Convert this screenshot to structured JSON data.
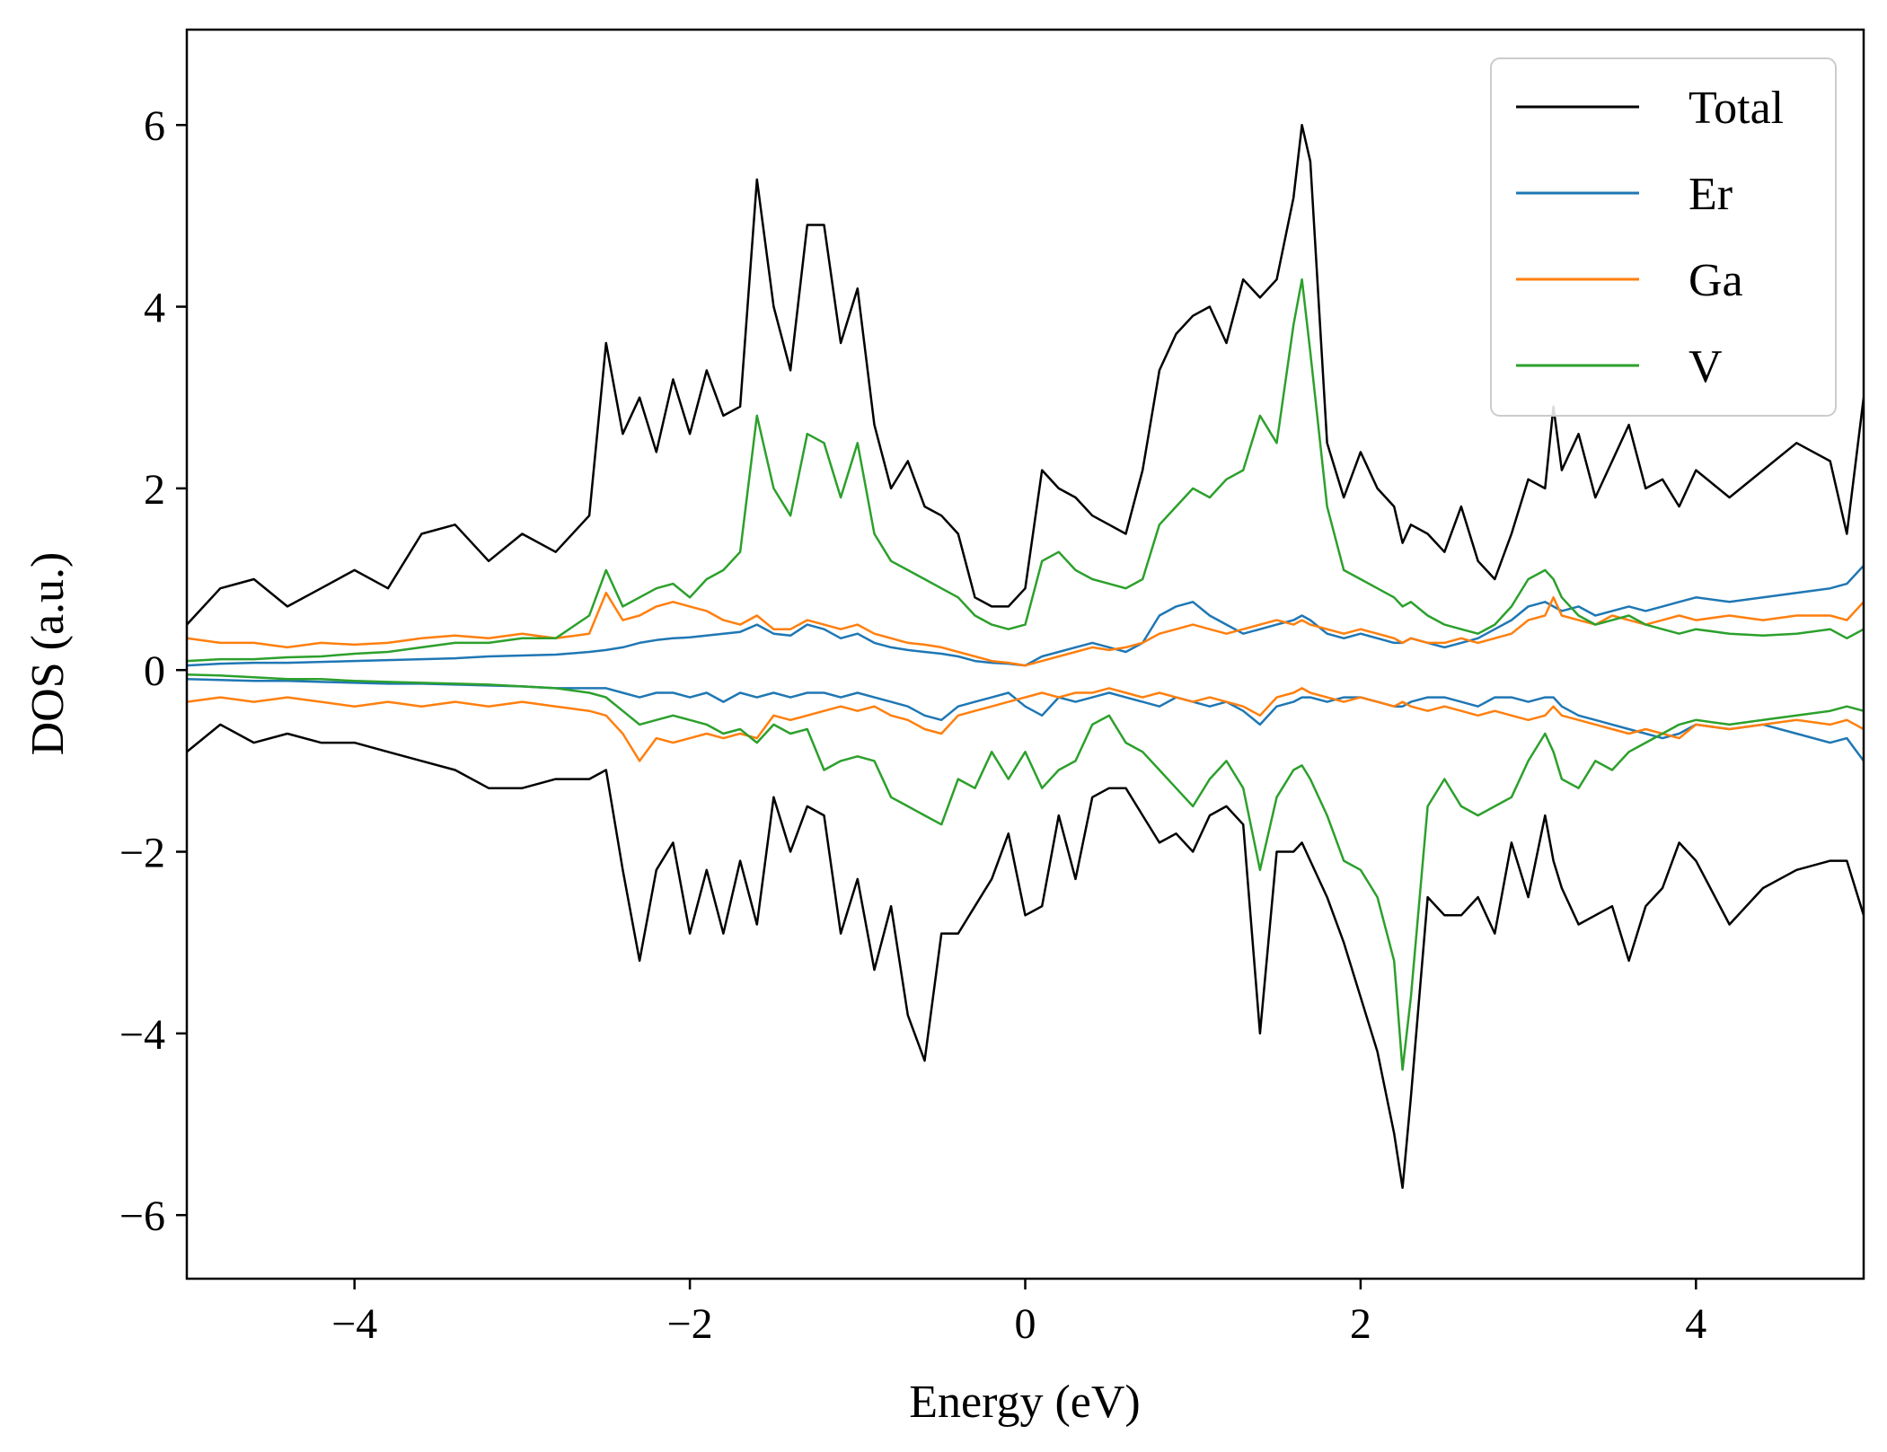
{
  "chart_data": {
    "type": "line",
    "title": "",
    "xlabel": "Energy (eV)",
    "ylabel": "DOS (a.u.)",
    "xlim": [
      -5,
      5
    ],
    "ylim": [
      -6.7,
      7.05
    ],
    "grid": false,
    "legend": "top-right",
    "xticks": [
      -4,
      -2,
      0,
      2,
      4
    ],
    "yticks": [
      -6,
      -4,
      -2,
      0,
      2,
      4,
      6
    ],
    "x": [
      -5.0,
      -4.8,
      -4.6,
      -4.4,
      -4.2,
      -4.0,
      -3.8,
      -3.6,
      -3.4,
      -3.2,
      -3.0,
      -2.8,
      -2.6,
      -2.5,
      -2.4,
      -2.3,
      -2.2,
      -2.1,
      -2.0,
      -1.9,
      -1.8,
      -1.7,
      -1.6,
      -1.5,
      -1.4,
      -1.3,
      -1.2,
      -1.1,
      -1.0,
      -0.9,
      -0.8,
      -0.7,
      -0.6,
      -0.5,
      -0.4,
      -0.3,
      -0.2,
      -0.1,
      0.0,
      0.1,
      0.2,
      0.3,
      0.4,
      0.5,
      0.6,
      0.7,
      0.8,
      0.9,
      1.0,
      1.1,
      1.2,
      1.3,
      1.4,
      1.5,
      1.6,
      1.65,
      1.7,
      1.8,
      1.9,
      2.0,
      2.1,
      2.2,
      2.25,
      2.3,
      2.4,
      2.5,
      2.6,
      2.7,
      2.8,
      2.9,
      3.0,
      3.1,
      3.15,
      3.2,
      3.3,
      3.4,
      3.5,
      3.6,
      3.7,
      3.8,
      3.9,
      4.0,
      4.2,
      4.4,
      4.6,
      4.8,
      4.9,
      5.0
    ],
    "series": [
      {
        "name": "Total",
        "color": "#000000",
        "up": [
          0.5,
          0.9,
          1.0,
          0.7,
          0.9,
          1.1,
          0.9,
          1.5,
          1.6,
          1.2,
          1.5,
          1.3,
          1.7,
          3.6,
          2.6,
          3.0,
          2.4,
          3.2,
          2.6,
          3.3,
          2.8,
          2.9,
          5.4,
          4.0,
          3.3,
          4.9,
          4.9,
          3.6,
          4.2,
          2.7,
          2.0,
          2.3,
          1.8,
          1.7,
          1.5,
          0.8,
          0.7,
          0.7,
          0.9,
          2.2,
          2.0,
          1.9,
          1.7,
          1.6,
          1.5,
          2.2,
          3.3,
          3.7,
          3.9,
          4.0,
          3.6,
          4.3,
          4.1,
          4.3,
          5.2,
          6.0,
          5.6,
          2.5,
          1.9,
          2.4,
          2.0,
          1.8,
          1.4,
          1.6,
          1.5,
          1.3,
          1.8,
          1.2,
          1.0,
          1.5,
          2.1,
          2.0,
          2.9,
          2.2,
          2.6,
          1.9,
          2.3,
          2.7,
          2.0,
          2.1,
          1.8,
          2.2,
          1.9,
          2.2,
          2.5,
          2.3,
          1.5,
          3.0
        ],
        "down": [
          -0.9,
          -0.6,
          -0.8,
          -0.7,
          -0.8,
          -0.8,
          -0.9,
          -1.0,
          -1.1,
          -1.3,
          -1.3,
          -1.2,
          -1.2,
          -1.1,
          -2.2,
          -3.2,
          -2.2,
          -1.9,
          -2.9,
          -2.2,
          -2.9,
          -2.1,
          -2.8,
          -1.4,
          -2.0,
          -1.5,
          -1.6,
          -2.9,
          -2.3,
          -3.3,
          -2.6,
          -3.8,
          -4.3,
          -2.9,
          -2.9,
          -2.6,
          -2.3,
          -1.8,
          -2.7,
          -2.6,
          -1.6,
          -2.3,
          -1.4,
          -1.3,
          -1.3,
          -1.6,
          -1.9,
          -1.8,
          -2.0,
          -1.6,
          -1.5,
          -1.7,
          -4.0,
          -2.0,
          -2.0,
          -1.9,
          -2.1,
          -2.5,
          -3.0,
          -3.6,
          -4.2,
          -5.1,
          -5.7,
          -4.7,
          -2.5,
          -2.7,
          -2.7,
          -2.5,
          -2.9,
          -1.9,
          -2.5,
          -1.6,
          -2.1,
          -2.4,
          -2.8,
          -2.7,
          -2.6,
          -3.2,
          -2.6,
          -2.4,
          -1.9,
          -2.1,
          -2.8,
          -2.4,
          -2.2,
          -2.1,
          -2.1,
          -2.7
        ]
      },
      {
        "name": "Er",
        "color": "#1f77b4",
        "up": [
          0.05,
          0.07,
          0.08,
          0.08,
          0.09,
          0.1,
          0.11,
          0.12,
          0.13,
          0.15,
          0.16,
          0.17,
          0.2,
          0.22,
          0.25,
          0.3,
          0.33,
          0.35,
          0.36,
          0.38,
          0.4,
          0.42,
          0.5,
          0.4,
          0.38,
          0.5,
          0.45,
          0.35,
          0.4,
          0.3,
          0.25,
          0.22,
          0.2,
          0.18,
          0.15,
          0.1,
          0.08,
          0.07,
          0.05,
          0.15,
          0.2,
          0.25,
          0.3,
          0.25,
          0.2,
          0.3,
          0.6,
          0.7,
          0.75,
          0.6,
          0.5,
          0.4,
          0.45,
          0.5,
          0.55,
          0.6,
          0.55,
          0.4,
          0.35,
          0.4,
          0.35,
          0.3,
          0.3,
          0.35,
          0.3,
          0.25,
          0.3,
          0.35,
          0.45,
          0.55,
          0.7,
          0.75,
          0.7,
          0.65,
          0.7,
          0.6,
          0.65,
          0.7,
          0.65,
          0.7,
          0.75,
          0.8,
          0.75,
          0.8,
          0.85,
          0.9,
          0.95,
          1.15
        ],
        "down": [
          -0.1,
          -0.11,
          -0.12,
          -0.12,
          -0.13,
          -0.14,
          -0.15,
          -0.15,
          -0.16,
          -0.17,
          -0.18,
          -0.2,
          -0.2,
          -0.2,
          -0.25,
          -0.3,
          -0.25,
          -0.25,
          -0.3,
          -0.25,
          -0.35,
          -0.25,
          -0.3,
          -0.25,
          -0.3,
          -0.25,
          -0.25,
          -0.3,
          -0.25,
          -0.3,
          -0.35,
          -0.4,
          -0.5,
          -0.55,
          -0.4,
          -0.35,
          -0.3,
          -0.25,
          -0.4,
          -0.5,
          -0.3,
          -0.35,
          -0.3,
          -0.25,
          -0.3,
          -0.35,
          -0.4,
          -0.3,
          -0.35,
          -0.4,
          -0.35,
          -0.45,
          -0.6,
          -0.4,
          -0.35,
          -0.3,
          -0.3,
          -0.35,
          -0.3,
          -0.3,
          -0.35,
          -0.4,
          -0.4,
          -0.35,
          -0.3,
          -0.3,
          -0.35,
          -0.4,
          -0.3,
          -0.3,
          -0.35,
          -0.3,
          -0.3,
          -0.4,
          -0.5,
          -0.55,
          -0.6,
          -0.65,
          -0.7,
          -0.75,
          -0.7,
          -0.6,
          -0.65,
          -0.6,
          -0.7,
          -0.8,
          -0.75,
          -1.0
        ]
      },
      {
        "name": "Ga",
        "color": "#ff7f0e",
        "up": [
          0.35,
          0.3,
          0.3,
          0.25,
          0.3,
          0.28,
          0.3,
          0.35,
          0.38,
          0.35,
          0.4,
          0.35,
          0.4,
          0.85,
          0.55,
          0.6,
          0.7,
          0.75,
          0.7,
          0.65,
          0.55,
          0.5,
          0.6,
          0.45,
          0.45,
          0.55,
          0.5,
          0.45,
          0.5,
          0.4,
          0.35,
          0.3,
          0.28,
          0.25,
          0.2,
          0.15,
          0.1,
          0.08,
          0.05,
          0.1,
          0.15,
          0.2,
          0.25,
          0.22,
          0.25,
          0.3,
          0.4,
          0.45,
          0.5,
          0.45,
          0.4,
          0.45,
          0.5,
          0.55,
          0.5,
          0.55,
          0.5,
          0.45,
          0.4,
          0.45,
          0.4,
          0.35,
          0.3,
          0.35,
          0.3,
          0.3,
          0.35,
          0.3,
          0.35,
          0.4,
          0.55,
          0.6,
          0.8,
          0.6,
          0.55,
          0.5,
          0.6,
          0.55,
          0.5,
          0.55,
          0.6,
          0.55,
          0.6,
          0.55,
          0.6,
          0.6,
          0.55,
          0.75
        ],
        "down": [
          -0.35,
          -0.3,
          -0.35,
          -0.3,
          -0.35,
          -0.4,
          -0.35,
          -0.4,
          -0.35,
          -0.4,
          -0.35,
          -0.4,
          -0.45,
          -0.5,
          -0.7,
          -1.0,
          -0.75,
          -0.8,
          -0.75,
          -0.7,
          -0.75,
          -0.7,
          -0.75,
          -0.5,
          -0.55,
          -0.5,
          -0.45,
          -0.4,
          -0.45,
          -0.4,
          -0.5,
          -0.55,
          -0.65,
          -0.7,
          -0.5,
          -0.45,
          -0.4,
          -0.35,
          -0.3,
          -0.25,
          -0.3,
          -0.25,
          -0.25,
          -0.2,
          -0.25,
          -0.3,
          -0.25,
          -0.3,
          -0.35,
          -0.3,
          -0.35,
          -0.4,
          -0.5,
          -0.3,
          -0.25,
          -0.2,
          -0.25,
          -0.3,
          -0.35,
          -0.3,
          -0.35,
          -0.4,
          -0.35,
          -0.4,
          -0.45,
          -0.4,
          -0.45,
          -0.5,
          -0.45,
          -0.5,
          -0.55,
          -0.5,
          -0.4,
          -0.5,
          -0.55,
          -0.6,
          -0.65,
          -0.7,
          -0.65,
          -0.7,
          -0.75,
          -0.6,
          -0.65,
          -0.6,
          -0.55,
          -0.6,
          -0.55,
          -0.65
        ]
      },
      {
        "name": "V",
        "color": "#2ca02c",
        "up": [
          0.1,
          0.12,
          0.12,
          0.14,
          0.15,
          0.18,
          0.2,
          0.25,
          0.3,
          0.3,
          0.35,
          0.35,
          0.6,
          1.1,
          0.7,
          0.8,
          0.9,
          0.95,
          0.8,
          1.0,
          1.1,
          1.3,
          2.8,
          2.0,
          1.7,
          2.6,
          2.5,
          1.9,
          2.5,
          1.5,
          1.2,
          1.1,
          1.0,
          0.9,
          0.8,
          0.6,
          0.5,
          0.45,
          0.5,
          1.2,
          1.3,
          1.1,
          1.0,
          0.95,
          0.9,
          1.0,
          1.6,
          1.8,
          2.0,
          1.9,
          2.1,
          2.2,
          2.8,
          2.5,
          3.8,
          4.3,
          3.5,
          1.8,
          1.1,
          1.0,
          0.9,
          0.8,
          0.7,
          0.75,
          0.6,
          0.5,
          0.45,
          0.4,
          0.5,
          0.7,
          1.0,
          1.1,
          1.0,
          0.8,
          0.6,
          0.5,
          0.55,
          0.6,
          0.5,
          0.45,
          0.4,
          0.45,
          0.4,
          0.38,
          0.4,
          0.45,
          0.35,
          0.45
        ],
        "down": [
          -0.05,
          -0.06,
          -0.08,
          -0.1,
          -0.1,
          -0.12,
          -0.13,
          -0.14,
          -0.15,
          -0.16,
          -0.18,
          -0.2,
          -0.25,
          -0.3,
          -0.45,
          -0.6,
          -0.55,
          -0.5,
          -0.55,
          -0.6,
          -0.7,
          -0.65,
          -0.8,
          -0.6,
          -0.7,
          -0.65,
          -1.1,
          -1.0,
          -0.95,
          -1.0,
          -1.4,
          -1.5,
          -1.6,
          -1.7,
          -1.2,
          -1.3,
          -0.9,
          -1.2,
          -0.9,
          -1.3,
          -1.1,
          -1.0,
          -0.6,
          -0.5,
          -0.8,
          -0.9,
          -1.1,
          -1.3,
          -1.5,
          -1.2,
          -1.0,
          -1.3,
          -2.2,
          -1.4,
          -1.1,
          -1.05,
          -1.2,
          -1.6,
          -2.1,
          -2.2,
          -2.5,
          -3.2,
          -4.4,
          -3.6,
          -1.5,
          -1.2,
          -1.5,
          -1.6,
          -1.5,
          -1.4,
          -1.0,
          -0.7,
          -0.9,
          -1.2,
          -1.3,
          -1.0,
          -1.1,
          -0.9,
          -0.8,
          -0.7,
          -0.6,
          -0.55,
          -0.6,
          -0.55,
          -0.5,
          -0.45,
          -0.4,
          -0.45
        ]
      }
    ]
  }
}
